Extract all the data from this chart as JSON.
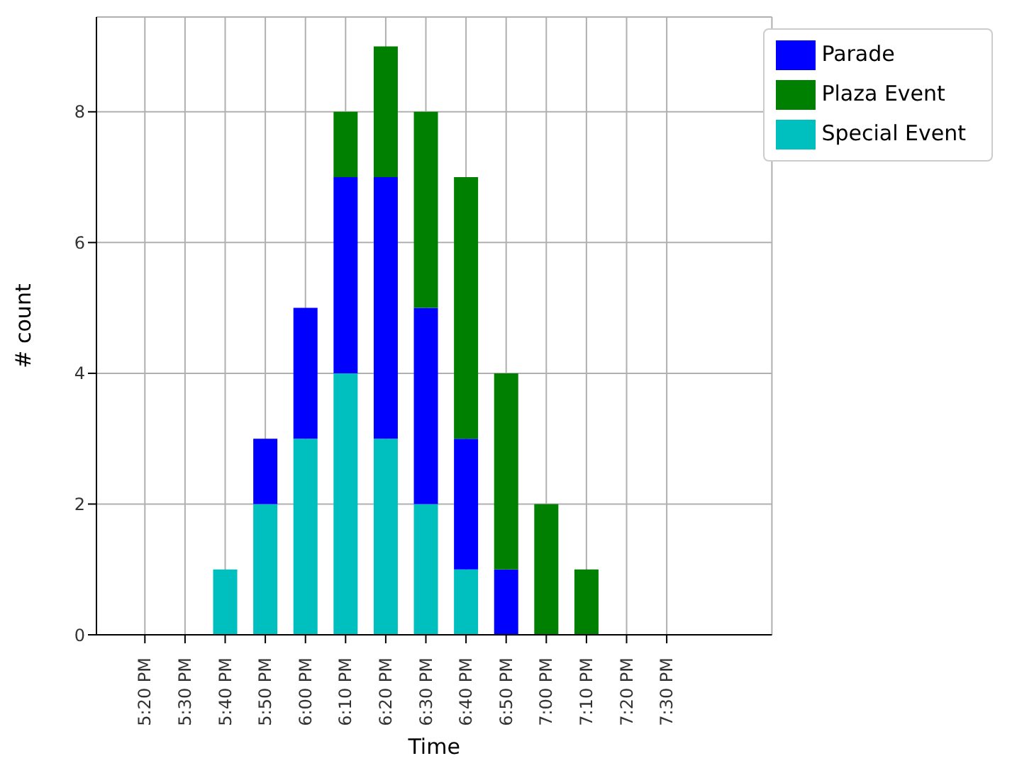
{
  "chart_data": {
    "type": "bar",
    "stacked": true,
    "xlabel": "Time",
    "ylabel": "# count",
    "categories": [
      "5:20 PM",
      "5:30 PM",
      "5:40 PM",
      "5:50 PM",
      "6:00 PM",
      "6:10 PM",
      "6:20 PM",
      "6:30 PM",
      "6:40 PM",
      "6:50 PM",
      "7:00 PM",
      "7:10 PM",
      "7:20 PM",
      "7:30 PM"
    ],
    "series": [
      {
        "name": "Special Event",
        "color": "#00bfbf",
        "values": [
          0,
          0,
          1,
          2,
          3,
          4,
          3,
          2,
          1,
          0,
          0,
          0,
          0,
          0
        ]
      },
      {
        "name": "Parade",
        "color": "#0000ff",
        "values": [
          0,
          0,
          0,
          1,
          2,
          3,
          4,
          3,
          2,
          1,
          0,
          0,
          0,
          0
        ]
      },
      {
        "name": "Plaza Event",
        "color": "#008000",
        "values": [
          0,
          0,
          0,
          0,
          0,
          1,
          2,
          3,
          4,
          3,
          2,
          1,
          0,
          0
        ]
      }
    ],
    "ylim": [
      0,
      9.45
    ],
    "yticks": [
      0,
      2,
      4,
      6,
      8
    ],
    "grid": true,
    "legend": "top right"
  }
}
